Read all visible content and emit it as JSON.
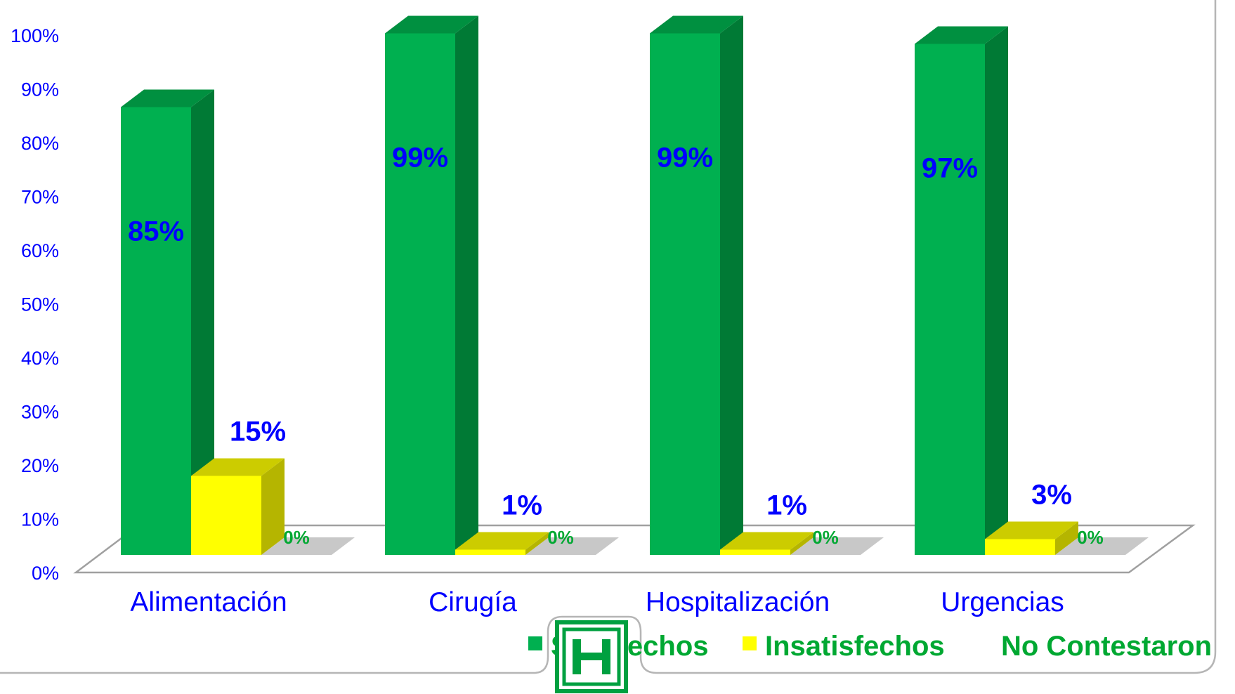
{
  "chart_data": {
    "type": "bar",
    "categories": [
      "Alimentación",
      "Cirugía",
      "Hospitalización",
      "Urgencias"
    ],
    "series": [
      {
        "name": "Satisfechos",
        "values": [
          85,
          99,
          99,
          97
        ],
        "labels": [
          "85%",
          "99%",
          "99%",
          "97%"
        ]
      },
      {
        "name": "Insatisfechos",
        "values": [
          15,
          1,
          1,
          3
        ],
        "labels": [
          "15%",
          "1%",
          "1%",
          "3%"
        ]
      },
      {
        "name": "No Contestaron",
        "values": [
          0,
          0,
          0,
          0
        ],
        "labels": [
          "0%",
          "0%",
          "0%",
          "0%"
        ]
      }
    ],
    "yticks": [
      "0%",
      "10%",
      "20%",
      "30%",
      "40%",
      "50%",
      "60%",
      "70%",
      "80%",
      "90%",
      "100%"
    ],
    "ylim": [
      0,
      100
    ],
    "three_d": true,
    "grid": false,
    "legend_placement": "bottom-right",
    "colors": {
      "satisfechos_front": "#00b050",
      "satisfechos_side": "#007a35",
      "satisfechos_top": "#009040",
      "insatisfechos_front": "#ffff00",
      "insatisfechos_side": "#b5b500",
      "insatisfechos_top": "#cccc00",
      "no_contestaron": "#c8c8c8",
      "axis_text": "#0000ff",
      "legend_text": "#00a832"
    }
  },
  "logo": {
    "name": "hospital-logo",
    "glyph": "H"
  }
}
